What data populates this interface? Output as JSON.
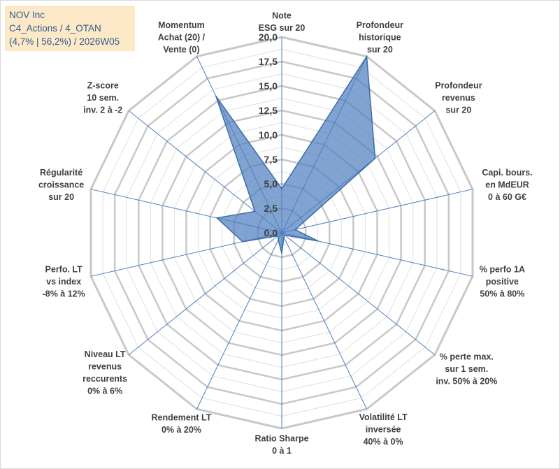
{
  "title_lines": [
    "NOV Inc",
    "C4_Actions / 4_OTAN",
    "(4,7% | 56,2%) / 2026W05"
  ],
  "chart_data": {
    "type": "radar",
    "r_min": 0,
    "r_max": 20,
    "ticks": [
      0,
      2.5,
      5,
      7.5,
      10,
      12.5,
      15,
      17.5,
      20
    ],
    "tick_labels": [
      "0,0",
      "2,5",
      "5,0",
      "7,5",
      "10,0",
      "12,5",
      "15,0",
      "17,5",
      "20,0"
    ],
    "axes": [
      {
        "label": [
          "Note",
          "ESG sur 20"
        ],
        "value": 4.5
      },
      {
        "label": [
          "Profondeur",
          "historique",
          "sur 20"
        ],
        "value": 20
      },
      {
        "label": [
          "Profondeur",
          "revenus",
          "sur 20"
        ],
        "value": 12.2
      },
      {
        "label": [
          "Capi. bours.",
          "en MdEUR",
          "0 à 60 G€"
        ],
        "value": 1.4
      },
      {
        "label": [
          "% perfo 1A",
          "positive",
          "50% à 80%"
        ],
        "value": 3.8
      },
      {
        "label": [
          "% perte max.",
          "sur 1 sem.",
          "inv. 50% à 20%"
        ],
        "value": 0.4
      },
      {
        "label": [
          "Volatilité LT",
          "inversée",
          "40% à 0%"
        ],
        "value": 0.5
      },
      {
        "label": [
          "Ratio Sharpe",
          "0 à 1"
        ],
        "value": 2.1
      },
      {
        "label": [
          "Rendement LT",
          "0% à 20%"
        ],
        "value": 0.8
      },
      {
        "label": [
          "Niveau LT",
          "revenus",
          "reccurents",
          "0% à 6%"
        ],
        "value": 0.5
      },
      {
        "label": [
          "Perfo. LT",
          "vs index",
          "-8% à 12%"
        ],
        "value": 4.1
      },
      {
        "label": [
          "Régularité",
          "croissance",
          "sur 20"
        ],
        "value": 6.8
      },
      {
        "label": [
          "Z-score",
          "10 sem.",
          "inv. 2 à -2"
        ],
        "value": 3.5
      },
      {
        "label": [
          "Momentum",
          "Achat (20) /",
          "Vente (0)"
        ],
        "value": 15.5
      }
    ],
    "series": [
      {
        "name": "NOV Inc",
        "color": "#4f7fbf"
      }
    ],
    "grid": true,
    "legend": "none"
  }
}
